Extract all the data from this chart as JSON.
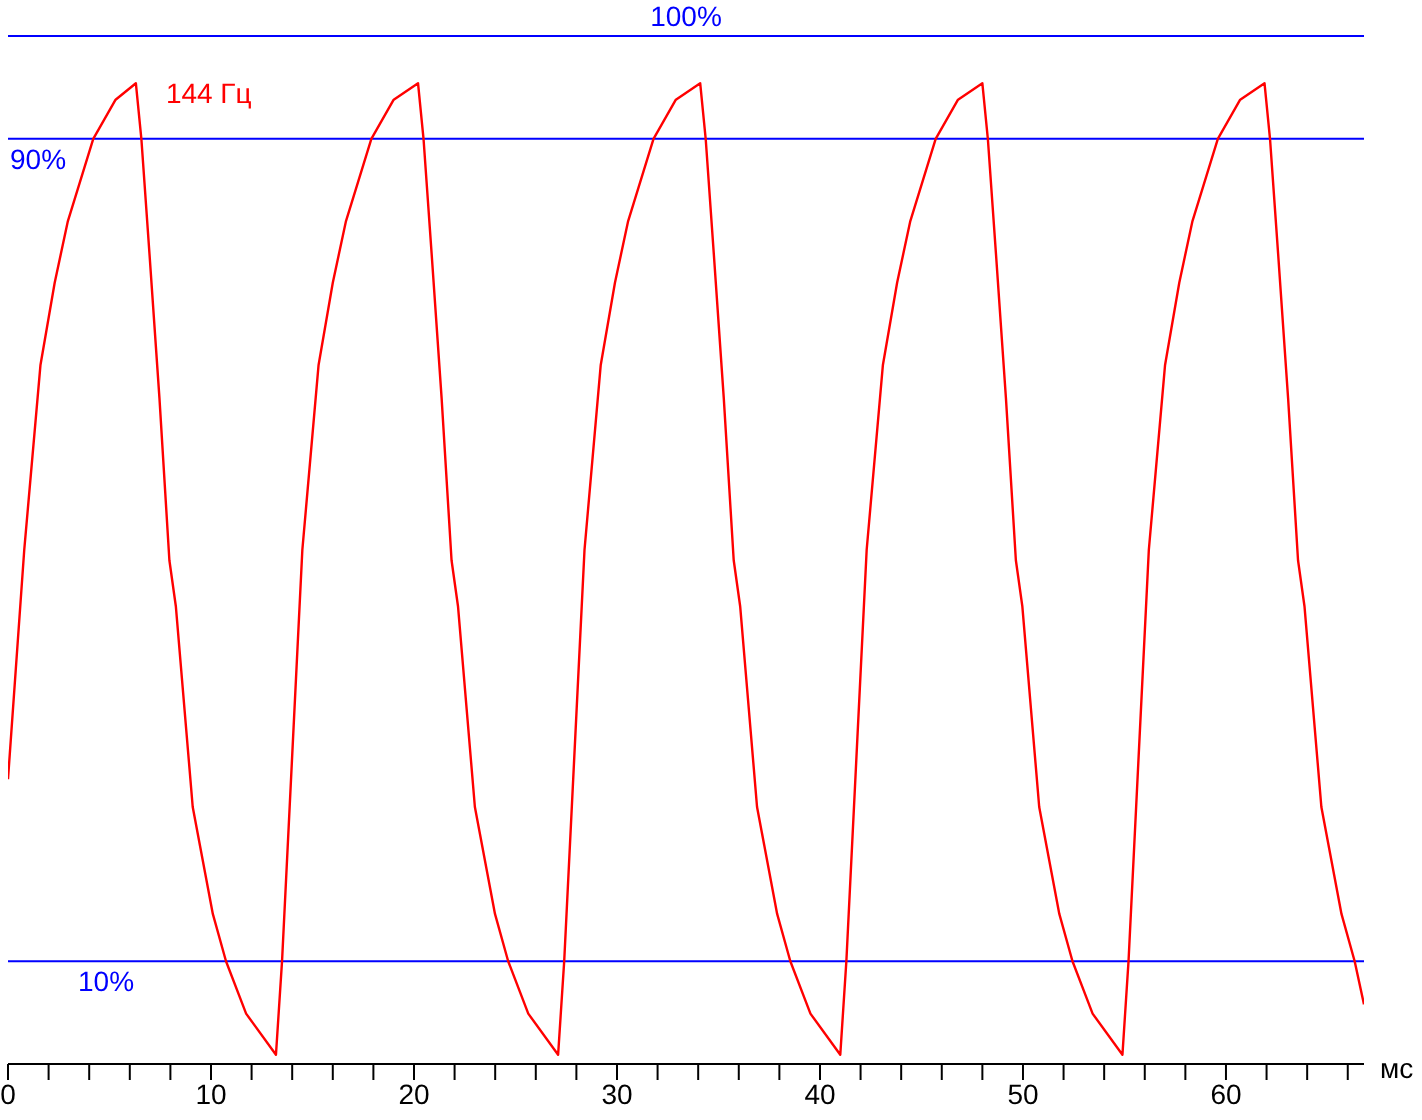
{
  "chart_data": {
    "type": "line",
    "xlabel": "мс",
    "xlim": [
      0,
      66.8
    ],
    "ylim": [
      0,
      103.5
    ],
    "tick_labels": "x",
    "xticks": [
      0,
      {
        "value": 2,
        "label": null
      },
      {
        "value": 4,
        "label": null
      },
      {
        "value": 6,
        "label": null
      },
      {
        "value": 8,
        "label": null
      },
      10,
      {
        "value": 12,
        "label": null
      },
      {
        "value": 14,
        "label": null
      },
      {
        "value": 16,
        "label": null
      },
      {
        "value": 18,
        "label": null
      },
      20,
      {
        "value": 22,
        "label": null
      },
      {
        "value": 24,
        "label": null
      },
      {
        "value": 26,
        "label": null
      },
      {
        "value": 28,
        "label": null
      },
      30,
      {
        "value": 32,
        "label": null
      },
      {
        "value": 34,
        "label": null
      },
      {
        "value": 36,
        "label": null
      },
      {
        "value": 38,
        "label": null
      },
      40,
      {
        "value": 42,
        "label": null
      },
      {
        "value": 44,
        "label": null
      },
      {
        "value": 46,
        "label": null
      },
      {
        "value": 48,
        "label": null
      },
      50,
      {
        "value": 52,
        "label": null
      },
      {
        "value": 54,
        "label": null
      },
      {
        "value": 56,
        "label": null
      },
      {
        "value": 58,
        "label": null
      },
      60,
      {
        "value": 62,
        "label": null
      },
      {
        "value": 64,
        "label": null
      },
      {
        "value": 66,
        "label": null
      }
    ],
    "ref_lines": [
      {
        "axis": "y",
        "value": 100,
        "label": "100%",
        "color": "#0000ff"
      },
      {
        "axis": "y",
        "value": 90,
        "label": "90%",
        "color": "#0000ff"
      },
      {
        "axis": "y",
        "value": 10,
        "label": "10%",
        "color": "#0000ff"
      }
    ],
    "series": [
      {
        "name": "144 Гц",
        "color": "#ff0000",
        "x": [
          0,
          0.8,
          1.6,
          2.3,
          2.95,
          4.2,
          5.3,
          6.3,
          6.57,
          6.97,
          7.46,
          7.95,
          8.27,
          9.1,
          10.09,
          10.74,
          11.73,
          13.2,
          13.5,
          14.5,
          15.3,
          16.0,
          16.65,
          17.9,
          19.0,
          20.2,
          20.47,
          20.87,
          21.36,
          21.85,
          22.17,
          23.0,
          23.99,
          24.64,
          25.63,
          27.1,
          27.4,
          28.4,
          29.2,
          29.9,
          30.55,
          31.8,
          32.9,
          34.1,
          34.37,
          34.77,
          35.26,
          35.75,
          36.07,
          36.9,
          37.89,
          38.54,
          39.53,
          41.0,
          41.3,
          42.3,
          43.1,
          43.8,
          44.45,
          45.7,
          46.8,
          48.0,
          48.27,
          48.67,
          49.16,
          49.65,
          49.97,
          50.8,
          51.79,
          52.44,
          53.43,
          54.9,
          55.2,
          56.2,
          57.0,
          57.7,
          58.35,
          59.6,
          60.7,
          61.9,
          62.17,
          62.57,
          63.06,
          63.55,
          63.87,
          64.7,
          65.69,
          66.34,
          66.8
        ],
        "values": [
          27.7,
          50,
          68,
          76,
          82,
          90,
          93.8,
          95.4,
          90,
          78.8,
          64.8,
          49,
          44.5,
          25,
          14.6,
          10,
          4.9,
          0.9,
          10,
          50,
          68,
          76,
          82,
          90,
          93.8,
          95.4,
          90,
          78.8,
          64.8,
          49,
          44.5,
          25,
          14.6,
          10,
          4.9,
          0.9,
          10,
          50,
          68,
          76,
          82,
          90,
          93.8,
          95.4,
          90,
          78.8,
          64.8,
          49,
          44.5,
          25,
          14.6,
          10,
          4.9,
          0.9,
          10,
          50,
          68,
          76,
          82,
          90,
          93.8,
          95.4,
          90,
          78.8,
          64.8,
          49,
          44.5,
          25,
          14.6,
          10,
          4.9,
          0.9,
          10,
          50,
          68,
          76,
          82,
          90,
          93.8,
          95.4,
          90,
          78.8,
          64.8,
          49,
          44.5,
          25,
          14.6,
          10,
          5.8
        ]
      }
    ]
  }
}
